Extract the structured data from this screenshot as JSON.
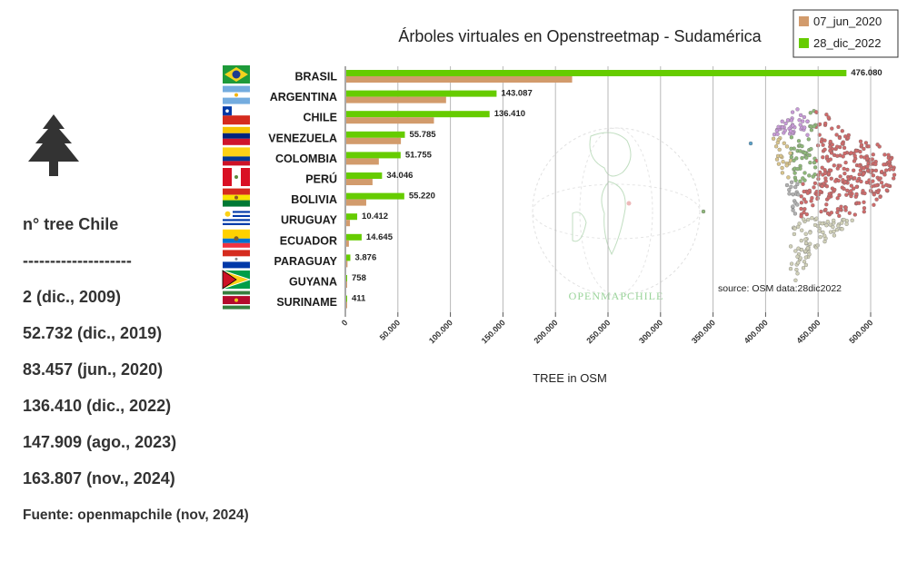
{
  "sidebar": {
    "icon": "pine-tree-icon",
    "heading": "n° tree Chile",
    "separator": "--------------------",
    "history": [
      "2 (dic., 2009)",
      "52.732 (dic., 2019)",
      "83.457 (jun., 2020)",
      "136.410 (dic., 2022)",
      "147.909 (ago., 2023)",
      "163.807 (nov., 2024)"
    ],
    "source": "Fuente: openmapchile (nov, 2024)"
  },
  "chart_data": {
    "type": "bar",
    "orientation": "horizontal",
    "title": "Árboles virtuales en Openstreetmap - Sudamérica",
    "xlabel": "TREE in OSM",
    "ylabel": "",
    "xlim": [
      0,
      500000
    ],
    "xticks": [
      0,
      50000,
      100000,
      150000,
      200000,
      250000,
      300000,
      350000,
      400000,
      450000,
      500000
    ],
    "xtick_labels": [
      "0",
      "50.000",
      "100.000",
      "150.000",
      "200.000",
      "250.000",
      "300.000",
      "350.000",
      "400.000",
      "450.000",
      "500.000"
    ],
    "grid": "vertical",
    "legend_position": "top-right",
    "categories": [
      "BRASIL",
      "ARGENTINA",
      "CHILE",
      "VENEZUELA",
      "COLOMBIA",
      "PERÚ",
      "BOLIVIA",
      "URUGUAY",
      "ECUADOR",
      "PARAGUAY",
      "GUYANA",
      "SURINAME"
    ],
    "flag_icons": [
      "brazil-flag-icon",
      "argentina-flag-icon",
      "chile-flag-icon",
      "venezuela-flag-icon",
      "colombia-flag-icon",
      "peru-flag-icon",
      "bolivia-flag-icon",
      "uruguay-flag-icon",
      "ecuador-flag-icon",
      "paraguay-flag-icon",
      "guyana-flag-icon",
      "suriname-flag-icon"
    ],
    "series": [
      {
        "name": "28_dic_2022",
        "color": "#66cc00",
        "values": [
          476080,
          143087,
          136410,
          55785,
          51755,
          34046,
          55220,
          10412,
          14645,
          3876,
          758,
          411
        ],
        "value_labels": [
          "476.080",
          "143.087",
          "136.410",
          "55.785",
          "51.755",
          "34.046",
          "55.220",
          "10.412",
          "14.645",
          "3.876",
          "758",
          "411"
        ]
      },
      {
        "name": "07_jun_2020",
        "color": "#d29b6c",
        "values": [
          215000,
          95000,
          83457,
          52000,
          31000,
          25000,
          19000,
          3500,
          2500,
          1200,
          300,
          200
        ]
      }
    ],
    "annotations": [
      "source: OSM data:28dic2022"
    ],
    "watermark": "OPENMAPCHILE"
  }
}
